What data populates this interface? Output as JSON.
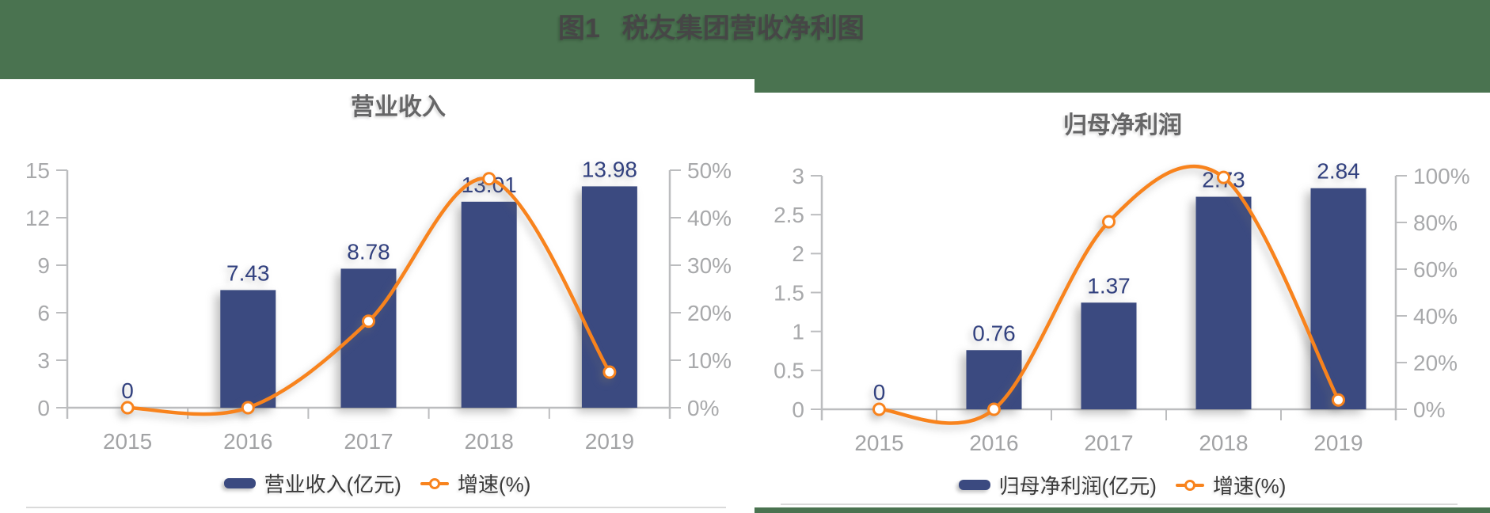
{
  "page": {
    "title_prefix": "图1",
    "title_text": "税友集团营收净利图",
    "background_color": "#4A7350",
    "panel_color": "#FFFFFF"
  },
  "colors": {
    "bar": "#3B4A80",
    "bar_label": "#32417F",
    "line": "#F8831D",
    "axis_line": "#BCBDBF",
    "axis_text": "#A8A9AB",
    "legend_text": "#3A3A3A"
  },
  "chart_data": [
    {
      "type": "bar+line",
      "title": "营业收入",
      "categories": [
        "2015",
        "2016",
        "2017",
        "2018",
        "2019"
      ],
      "series": [
        {
          "name": "营业收入(亿元)",
          "type": "bar",
          "axis": "left",
          "values": [
            0,
            7.43,
            8.78,
            13.01,
            13.98
          ],
          "labels": [
            "0",
            "7.43",
            "8.78",
            "13.01",
            "13.98"
          ],
          "color": "#3B4A80"
        },
        {
          "name": "增速(%)",
          "type": "line",
          "axis": "right",
          "values": [
            0,
            0,
            18.2,
            48.2,
            7.5
          ],
          "color": "#F8831D"
        }
      ],
      "left_axis": {
        "min": 0,
        "max": 15,
        "step": 3,
        "tick_labels": [
          "0",
          "3",
          "6",
          "9",
          "12",
          "15"
        ]
      },
      "right_axis": {
        "min": 0,
        "max": 50,
        "step": 10,
        "tick_labels": [
          "0%",
          "10%",
          "20%",
          "30%",
          "40%",
          "50%"
        ]
      },
      "xlabel": "",
      "ylabel": "",
      "grid": false,
      "legend_position": "bottom"
    },
    {
      "type": "bar+line",
      "title": "归母净利润",
      "categories": [
        "2015",
        "2016",
        "2017",
        "2018",
        "2019"
      ],
      "series": [
        {
          "name": "归母净利润(亿元)",
          "type": "bar",
          "axis": "left",
          "values": [
            0,
            0.76,
            1.37,
            2.73,
            2.84
          ],
          "labels": [
            "0",
            "0.76",
            "1.37",
            "2.73",
            "2.84"
          ],
          "color": "#3B4A80"
        },
        {
          "name": "增速(%)",
          "type": "line",
          "axis": "right",
          "values": [
            0,
            0,
            80.3,
            99.3,
            4.0
          ],
          "color": "#F8831D"
        }
      ],
      "left_axis": {
        "min": 0,
        "max": 3,
        "step": 0.5,
        "tick_labels": [
          "0",
          "0.5",
          "1",
          "1.5",
          "2",
          "2.5",
          "3"
        ]
      },
      "right_axis": {
        "min": 0,
        "max": 100,
        "step": 20,
        "tick_labels": [
          "0%",
          "20%",
          "40%",
          "60%",
          "80%",
          "100%"
        ]
      },
      "xlabel": "",
      "ylabel": "",
      "grid": false,
      "legend_position": "bottom"
    }
  ]
}
